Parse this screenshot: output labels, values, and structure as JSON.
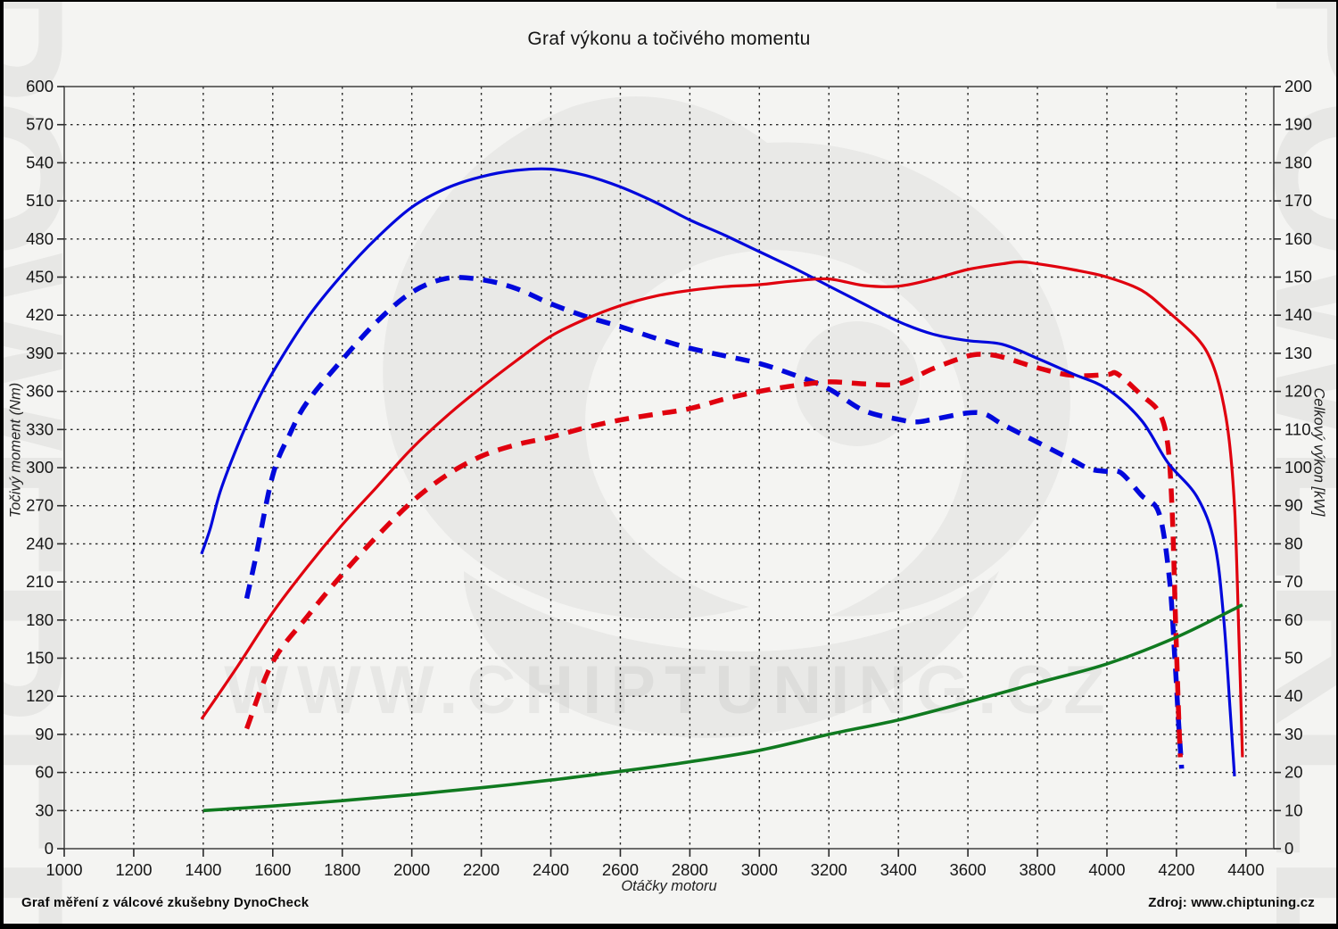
{
  "title": "Graf výkonu a točivého momentu",
  "footer": {
    "left": "Graf měření z válcové zkušebny DynoCheck",
    "right": "Zdroj: www.chiptuning.cz"
  },
  "watermark": {
    "side_text": "POWERED",
    "center_text": "WWW.CHIPTUNING.CZ"
  },
  "chart_data": {
    "type": "line",
    "title": "Graf výkonu a točivého momentu",
    "xlabel": "Otáčky motoru",
    "ylabel_left": "Točivý moment (Nm)",
    "ylabel_right": "Celkový výkon [kW]",
    "xlim": [
      1000,
      4480
    ],
    "ylim_left": [
      0,
      600
    ],
    "ylim_right": [
      0,
      200
    ],
    "x_ticks": [
      1000,
      1200,
      1400,
      1600,
      1800,
      2000,
      2200,
      2400,
      2600,
      2800,
      3000,
      3200,
      3400,
      3600,
      3800,
      4000,
      4200,
      4400
    ],
    "y_ticks_left": [
      0,
      30,
      60,
      90,
      120,
      150,
      180,
      210,
      240,
      270,
      300,
      330,
      360,
      390,
      420,
      450,
      480,
      510,
      540,
      570,
      600
    ],
    "y_ticks_right": [
      0,
      10,
      20,
      30,
      40,
      50,
      60,
      70,
      80,
      90,
      100,
      110,
      120,
      130,
      140,
      150,
      160,
      170,
      180,
      190,
      200
    ],
    "grid": true,
    "legend": "none",
    "series": [
      {
        "name": "torque-tuned",
        "axis": "left",
        "unit": "Nm",
        "color": "#0008dc",
        "style": "solid",
        "width": 3.2,
        "points": [
          [
            1395,
            232
          ],
          [
            1420,
            252
          ],
          [
            1450,
            282
          ],
          [
            1500,
            318
          ],
          [
            1550,
            349
          ],
          [
            1600,
            375
          ],
          [
            1700,
            418
          ],
          [
            1800,
            452
          ],
          [
            1900,
            481
          ],
          [
            2000,
            505
          ],
          [
            2100,
            520
          ],
          [
            2200,
            529
          ],
          [
            2300,
            534
          ],
          [
            2400,
            535
          ],
          [
            2500,
            530
          ],
          [
            2600,
            521
          ],
          [
            2700,
            509
          ],
          [
            2800,
            495
          ],
          [
            2900,
            483
          ],
          [
            3000,
            470
          ],
          [
            3100,
            457
          ],
          [
            3200,
            443
          ],
          [
            3300,
            429
          ],
          [
            3400,
            415
          ],
          [
            3500,
            405
          ],
          [
            3600,
            400
          ],
          [
            3700,
            397
          ],
          [
            3800,
            386
          ],
          [
            3900,
            374
          ],
          [
            4000,
            362
          ],
          [
            4100,
            337
          ],
          [
            4175,
            304
          ],
          [
            4259,
            277
          ],
          [
            4310,
            240
          ],
          [
            4336,
            181
          ],
          [
            4354,
            111
          ],
          [
            4367,
            57
          ]
        ]
      },
      {
        "name": "torque-original",
        "axis": "left",
        "unit": "Nm",
        "color": "#0008dc",
        "style": "dashed",
        "width": 5.5,
        "points": [
          [
            1525,
            197
          ],
          [
            1550,
            228
          ],
          [
            1600,
            294
          ],
          [
            1650,
            327
          ],
          [
            1700,
            352
          ],
          [
            1800,
            385
          ],
          [
            1900,
            415
          ],
          [
            2000,
            438
          ],
          [
            2100,
            449
          ],
          [
            2200,
            448
          ],
          [
            2300,
            441
          ],
          [
            2400,
            429
          ],
          [
            2500,
            419
          ],
          [
            2600,
            411
          ],
          [
            2700,
            402
          ],
          [
            2800,
            394
          ],
          [
            2900,
            388
          ],
          [
            3000,
            382
          ],
          [
            3100,
            373
          ],
          [
            3200,
            362
          ],
          [
            3300,
            345
          ],
          [
            3400,
            338
          ],
          [
            3450,
            336
          ],
          [
            3500,
            338
          ],
          [
            3600,
            343
          ],
          [
            3650,
            342
          ],
          [
            3700,
            334
          ],
          [
            3800,
            320
          ],
          [
            3900,
            306
          ],
          [
            3950,
            299
          ],
          [
            4000,
            297
          ],
          [
            4040,
            296
          ],
          [
            4100,
            278
          ],
          [
            4150,
            264
          ],
          [
            4180,
            212
          ],
          [
            4195,
            152
          ],
          [
            4205,
            105
          ],
          [
            4215,
            63
          ]
        ]
      },
      {
        "name": "power-tuned",
        "axis": "right",
        "unit": "kW",
        "color": "#e0000e",
        "style": "solid",
        "width": 3.2,
        "points": [
          [
            1395,
            34
          ],
          [
            1500,
            48
          ],
          [
            1600,
            62
          ],
          [
            1700,
            74
          ],
          [
            1800,
            85
          ],
          [
            1900,
            95
          ],
          [
            2000,
            105
          ],
          [
            2100,
            113.5
          ],
          [
            2200,
            121
          ],
          [
            2300,
            128
          ],
          [
            2400,
            134.5
          ],
          [
            2500,
            139
          ],
          [
            2600,
            142.5
          ],
          [
            2700,
            145
          ],
          [
            2800,
            146.5
          ],
          [
            2900,
            147.5
          ],
          [
            3000,
            148
          ],
          [
            3100,
            149
          ],
          [
            3200,
            149.5
          ],
          [
            3300,
            147.8
          ],
          [
            3400,
            147.6
          ],
          [
            3500,
            149.5
          ],
          [
            3600,
            152
          ],
          [
            3700,
            153.5
          ],
          [
            3750,
            154
          ],
          [
            3800,
            153.5
          ],
          [
            3900,
            152
          ],
          [
            4000,
            150
          ],
          [
            4100,
            146.5
          ],
          [
            4175,
            141
          ],
          [
            4259,
            134
          ],
          [
            4300,
            128
          ],
          [
            4330,
            119
          ],
          [
            4352,
            107
          ],
          [
            4368,
            88
          ],
          [
            4380,
            55
          ],
          [
            4390,
            24
          ]
        ]
      },
      {
        "name": "power-original",
        "axis": "right",
        "unit": "kW",
        "color": "#e0000e",
        "style": "dashed",
        "width": 5.5,
        "points": [
          [
            1525,
            31.5
          ],
          [
            1600,
            49
          ],
          [
            1700,
            61
          ],
          [
            1800,
            72
          ],
          [
            1900,
            82
          ],
          [
            2000,
            91
          ],
          [
            2100,
            98
          ],
          [
            2200,
            103
          ],
          [
            2300,
            106
          ],
          [
            2400,
            108
          ],
          [
            2500,
            110.5
          ],
          [
            2600,
            112.5
          ],
          [
            2700,
            114
          ],
          [
            2800,
            115.5
          ],
          [
            2900,
            118
          ],
          [
            3000,
            120
          ],
          [
            3100,
            121.5
          ],
          [
            3200,
            122.5
          ],
          [
            3300,
            122
          ],
          [
            3400,
            122
          ],
          [
            3500,
            126
          ],
          [
            3600,
            129.3
          ],
          [
            3650,
            129.7
          ],
          [
            3700,
            129
          ],
          [
            3800,
            126.2
          ],
          [
            3900,
            124.2
          ],
          [
            4000,
            124.4
          ],
          [
            4030,
            124.6
          ],
          [
            4100,
            119
          ],
          [
            4150,
            114.5
          ],
          [
            4175,
            106
          ],
          [
            4188,
            88
          ],
          [
            4198,
            58
          ],
          [
            4206,
            36
          ],
          [
            4211,
            24
          ]
        ]
      },
      {
        "name": "losses",
        "axis": "right",
        "unit": "kW",
        "color": "#107a20",
        "style": "solid",
        "width": 3.6,
        "points": [
          [
            1400,
            10
          ],
          [
            1600,
            11.2
          ],
          [
            1800,
            12.6
          ],
          [
            2000,
            14.2
          ],
          [
            2200,
            16
          ],
          [
            2400,
            18
          ],
          [
            2600,
            20.3
          ],
          [
            2800,
            22.8
          ],
          [
            3000,
            25.8
          ],
          [
            3200,
            30
          ],
          [
            3400,
            33.8
          ],
          [
            3600,
            38.5
          ],
          [
            3800,
            43.5
          ],
          [
            4000,
            48.5
          ],
          [
            4200,
            55.5
          ],
          [
            4390,
            64
          ]
        ]
      }
    ]
  }
}
